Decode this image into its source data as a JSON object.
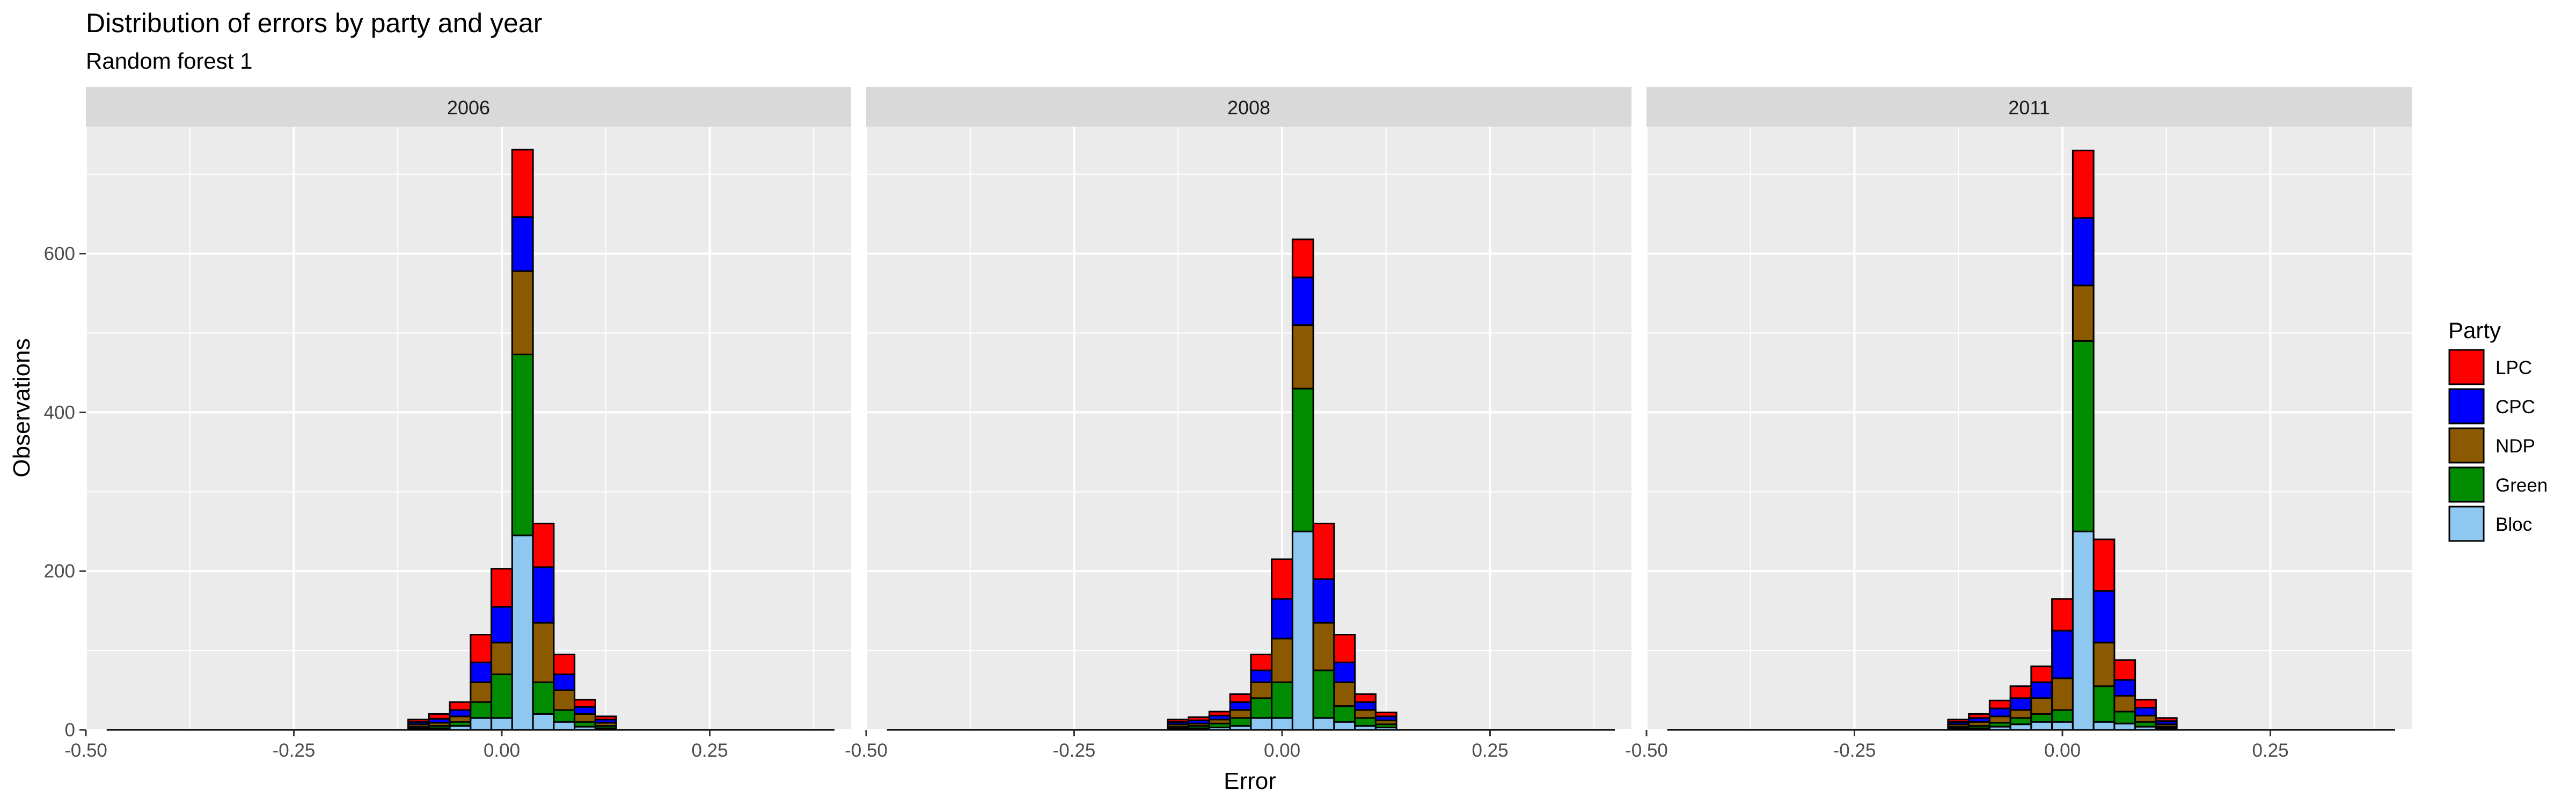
{
  "chart_data": {
    "type": "bar",
    "stacked": true,
    "title": "Distribution of errors by party and year",
    "subtitle": "Random forest 1",
    "xlabel": "Error",
    "ylabel": "Observations",
    "xlim": [
      -0.5,
      0.42
    ],
    "ylim": [
      0,
      760
    ],
    "x_ticks": [
      -0.5,
      -0.25,
      0.0,
      0.25
    ],
    "x_tick_labels": [
      "-0.50",
      "-0.25",
      "0.00",
      "0.25"
    ],
    "y_ticks": [
      0,
      200,
      400,
      600
    ],
    "y_tick_labels": [
      "0",
      "200",
      "400",
      "600"
    ],
    "grid": true,
    "legend": {
      "title": "Party",
      "position": "right"
    },
    "bin_width": 0.025,
    "parties": [
      {
        "name": "LPC",
        "color": "#ff0000"
      },
      {
        "name": "CPC",
        "color": "#0000ff"
      },
      {
        "name": "NDP",
        "color": "#8b5a00"
      },
      {
        "name": "Green",
        "color": "#008b00"
      },
      {
        "name": "Bloc",
        "color": "#8ec8f0"
      }
    ],
    "panels": [
      {
        "label": "2006",
        "bins": [
          {
            "x": -0.1,
            "values": [
              3,
              3,
              3,
              2,
              2
            ]
          },
          {
            "x": -0.075,
            "values": [
              6,
              5,
              4,
              3,
              2
            ]
          },
          {
            "x": -0.05,
            "values": [
              10,
              8,
              7,
              5,
              5
            ]
          },
          {
            "x": -0.025,
            "values": [
              35,
              25,
              25,
              20,
              15
            ]
          },
          {
            "x": 0.0,
            "values": [
              48,
              45,
              40,
              55,
              15
            ]
          },
          {
            "x": 0.025,
            "values": [
              85,
              68,
              105,
              228,
              245
            ]
          },
          {
            "x": 0.05,
            "values": [
              55,
              70,
              75,
              40,
              20
            ]
          },
          {
            "x": 0.075,
            "values": [
              25,
              20,
              25,
              15,
              10
            ]
          },
          {
            "x": 0.1,
            "values": [
              9,
              9,
              10,
              6,
              4
            ]
          },
          {
            "x": 0.125,
            "values": [
              4,
              4,
              4,
              3,
              2
            ]
          }
        ]
      },
      {
        "label": "2008",
        "bins": [
          {
            "x": -0.125,
            "values": [
              3,
              3,
              3,
              2,
              2
            ]
          },
          {
            "x": -0.1,
            "values": [
              4,
              4,
              3,
              3,
              2
            ]
          },
          {
            "x": -0.075,
            "values": [
              5,
              5,
              5,
              5,
              3
            ]
          },
          {
            "x": -0.05,
            "values": [
              10,
              10,
              10,
              10,
              5
            ]
          },
          {
            "x": -0.025,
            "values": [
              20,
              15,
              20,
              25,
              15
            ]
          },
          {
            "x": 0.0,
            "values": [
              50,
              50,
              55,
              45,
              15
            ]
          },
          {
            "x": 0.025,
            "values": [
              48,
              60,
              80,
              180,
              250
            ]
          },
          {
            "x": 0.05,
            "values": [
              70,
              55,
              60,
              60,
              15
            ]
          },
          {
            "x": 0.075,
            "values": [
              35,
              25,
              30,
              20,
              10
            ]
          },
          {
            "x": 0.1,
            "values": [
              10,
              10,
              10,
              10,
              5
            ]
          },
          {
            "x": 0.125,
            "values": [
              5,
              5,
              5,
              4,
              3
            ]
          }
        ]
      },
      {
        "label": "2011",
        "bins": [
          {
            "x": -0.125,
            "values": [
              3,
              3,
              3,
              2,
              2
            ]
          },
          {
            "x": -0.1,
            "values": [
              5,
              5,
              5,
              3,
              2
            ]
          },
          {
            "x": -0.075,
            "values": [
              10,
              10,
              8,
              5,
              4
            ]
          },
          {
            "x": -0.05,
            "values": [
              15,
              15,
              10,
              8,
              7
            ]
          },
          {
            "x": -0.025,
            "values": [
              20,
              20,
              20,
              10,
              10
            ]
          },
          {
            "x": 0.0,
            "values": [
              40,
              60,
              40,
              15,
              10
            ]
          },
          {
            "x": 0.025,
            "values": [
              85,
              85,
              70,
              240,
              250
            ]
          },
          {
            "x": 0.05,
            "values": [
              65,
              65,
              55,
              45,
              10
            ]
          },
          {
            "x": 0.075,
            "values": [
              25,
              20,
              20,
              15,
              8
            ]
          },
          {
            "x": 0.1,
            "values": [
              10,
              10,
              8,
              6,
              4
            ]
          },
          {
            "x": 0.125,
            "values": [
              4,
              4,
              3,
              2,
              2
            ]
          }
        ]
      }
    ]
  }
}
